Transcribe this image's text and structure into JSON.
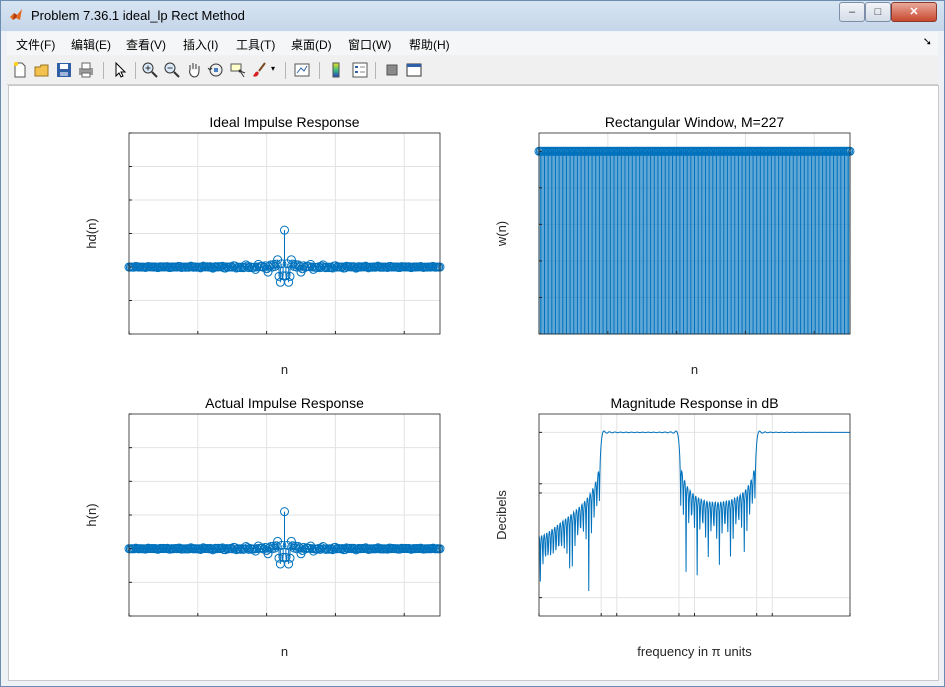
{
  "window": {
    "title": "Problem 7.36.1 ideal_lp Rect Method",
    "minimize": "–",
    "maximize": "□",
    "close": "✕"
  },
  "menu": [
    {
      "label": "文件(F)"
    },
    {
      "label": "编辑(E)"
    },
    {
      "label": "查看(V)"
    },
    {
      "label": "插入(I)"
    },
    {
      "label": "工具(T)"
    },
    {
      "label": "桌面(D)"
    },
    {
      "label": "窗口(W)"
    },
    {
      "label": "帮助(H)"
    }
  ],
  "toolbar": [
    {
      "name": "new-figure-icon"
    },
    {
      "name": "open-file-icon"
    },
    {
      "name": "save-icon"
    },
    {
      "name": "print-icon"
    },
    {
      "name": "pointer-icon"
    },
    {
      "name": "zoom-in-icon"
    },
    {
      "name": "zoom-out-icon"
    },
    {
      "name": "pan-hand-icon"
    },
    {
      "name": "rotate-3d-icon"
    },
    {
      "name": "data-cursor-icon"
    },
    {
      "name": "brush-icon"
    },
    {
      "name": "link-plot-icon"
    },
    {
      "name": "colorbar-icon"
    },
    {
      "name": "legend-icon"
    },
    {
      "name": "hide-tools-icon"
    },
    {
      "name": "show-tools-icon"
    }
  ],
  "colors": {
    "series": "#0072bd",
    "grid": "#e3e3e3",
    "axis": "#262626"
  },
  "chart_data": [
    {
      "type": "stem",
      "title": "Ideal Impulse Response",
      "xlabel": "n",
      "ylabel": "hd(n)",
      "xlim": [
        0,
        226
      ],
      "ylim": [
        -1,
        2
      ],
      "xticks": [
        "0",
        "50",
        "100",
        "150",
        "200"
      ],
      "yticks": [
        "-1",
        "-0.5",
        "0",
        "0.5",
        "1",
        "1.5",
        "2"
      ],
      "series": [
        {
          "n_range": [
            0,
            226
          ],
          "center": 113,
          "cutoffs_pi": [
            0.2,
            0.45,
            0.7
          ],
          "gains": [
            0,
            1,
            0,
            1
          ],
          "peak_value": 1.65,
          "min_value": -0.79
        }
      ]
    },
    {
      "type": "stem",
      "title": "Rectangular Window, M=227",
      "xlabel": "n",
      "ylabel": "w(n)",
      "xlim": [
        0,
        226
      ],
      "ylim": [
        0,
        1.1
      ],
      "xticks": [
        "0",
        "50",
        "100",
        "150",
        "200"
      ],
      "yticks": [
        "0",
        "0.2",
        "0.4",
        "0.6",
        "0.8",
        "1"
      ],
      "series": [
        {
          "n_range": [
            0,
            226
          ],
          "value": 1
        }
      ]
    },
    {
      "type": "stem",
      "title": "Actual Impulse Response",
      "xlabel": "n",
      "ylabel": "h(n)",
      "xlim": [
        0,
        226
      ],
      "ylim": [
        -1,
        2
      ],
      "xticks": [
        "0",
        "50",
        "100",
        "150",
        "200"
      ],
      "yticks": [
        "-1",
        "-0.5",
        "0",
        "0.5",
        "1",
        "1.5",
        "2"
      ],
      "series": [
        {
          "n_range": [
            0,
            226
          ],
          "center": 113,
          "cutoffs_pi": [
            0.2,
            0.45,
            0.7
          ],
          "gains": [
            0,
            1,
            0,
            1
          ],
          "peak_value": 1.65,
          "min_value": -0.79
        }
      ]
    },
    {
      "type": "line",
      "title": "Magnitude Response in dB",
      "xlabel": "frequency in π units",
      "ylabel": "Decibels",
      "xlim": [
        0,
        1
      ],
      "ylim": [
        -100,
        10
      ],
      "xticks": [
        {
          "value": 0,
          "label": "0"
        },
        {
          "value": 0.2,
          "label": "0.2"
        },
        {
          "value": 0.25,
          "label": "0.25"
        },
        {
          "value": 0.45,
          "label": "0.45"
        },
        {
          "value": 0.5,
          "label": "0.5"
        },
        {
          "value": 0.7,
          "label": "0.7"
        },
        {
          "value": 0.75,
          "label": "0.75"
        },
        {
          "value": 1,
          "label": "1"
        }
      ],
      "yticks": [
        {
          "value": 0,
          "label": "0"
        },
        {
          "value": -28,
          "label": "28"
        },
        {
          "value": -33,
          "label": "33"
        },
        {
          "value": -90,
          "label": "90"
        }
      ],
      "series": [
        {
          "passbands": [
            [
              0.225,
              0.475
            ],
            [
              0.725,
              1
            ]
          ],
          "passband_db": -6,
          "highpass_db": 0
        }
      ]
    }
  ]
}
